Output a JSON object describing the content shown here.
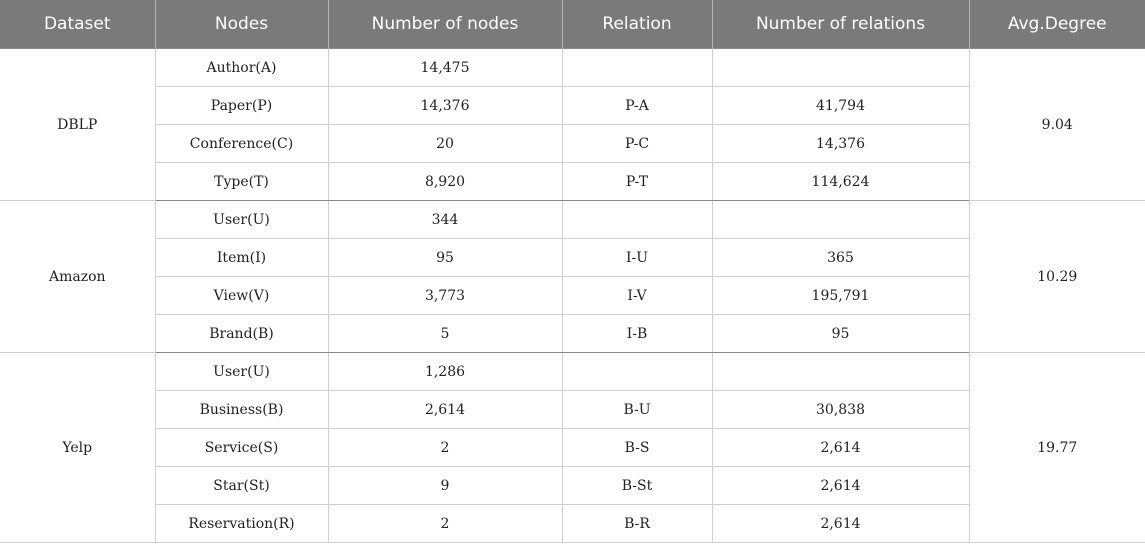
{
  "headers": [
    "Dataset",
    "Nodes",
    "Number of nodes",
    "Relation",
    "Number of relations",
    "Avg.Degree"
  ],
  "groups": [
    {
      "dataset": "DBLP",
      "avg_degree": "9.04",
      "rows": [
        {
          "node": "Author(A)",
          "num_nodes": "14,475",
          "relation": "",
          "num_relations": ""
        },
        {
          "node": "Paper(P)",
          "num_nodes": "14,376",
          "relation": "P-A",
          "num_relations": "41,794"
        },
        {
          "node": "Conference(C)",
          "num_nodes": "20",
          "relation": "P-C",
          "num_relations": "14,376"
        },
        {
          "node": "Type(T)",
          "num_nodes": "8,920",
          "relation": "P-T",
          "num_relations": "114,624"
        }
      ]
    },
    {
      "dataset": "Amazon",
      "avg_degree": "10.29",
      "rows": [
        {
          "node": "User(U)",
          "num_nodes": "344",
          "relation": "",
          "num_relations": ""
        },
        {
          "node": "Item(I)",
          "num_nodes": "95",
          "relation": "I-U",
          "num_relations": "365"
        },
        {
          "node": "View(V)",
          "num_nodes": "3,773",
          "relation": "I-V",
          "num_relations": "195,791"
        },
        {
          "node": "Brand(B)",
          "num_nodes": "5",
          "relation": "I-B",
          "num_relations": "95"
        }
      ]
    },
    {
      "dataset": "Yelp",
      "avg_degree": "19.77",
      "rows": [
        {
          "node": "User(U)",
          "num_nodes": "1,286",
          "relation": "",
          "num_relations": ""
        },
        {
          "node": "Business(B)",
          "num_nodes": "2,614",
          "relation": "B-U",
          "num_relations": "30,838"
        },
        {
          "node": "Service(S)",
          "num_nodes": "2",
          "relation": "B-S",
          "num_relations": "2,614"
        },
        {
          "node": "Star(St)",
          "num_nodes": "9",
          "relation": "B-St",
          "num_relations": "2,614"
        },
        {
          "node": "Reservation(R)",
          "num_nodes": "2",
          "relation": "B-R",
          "num_relations": "2,614"
        }
      ]
    }
  ]
}
